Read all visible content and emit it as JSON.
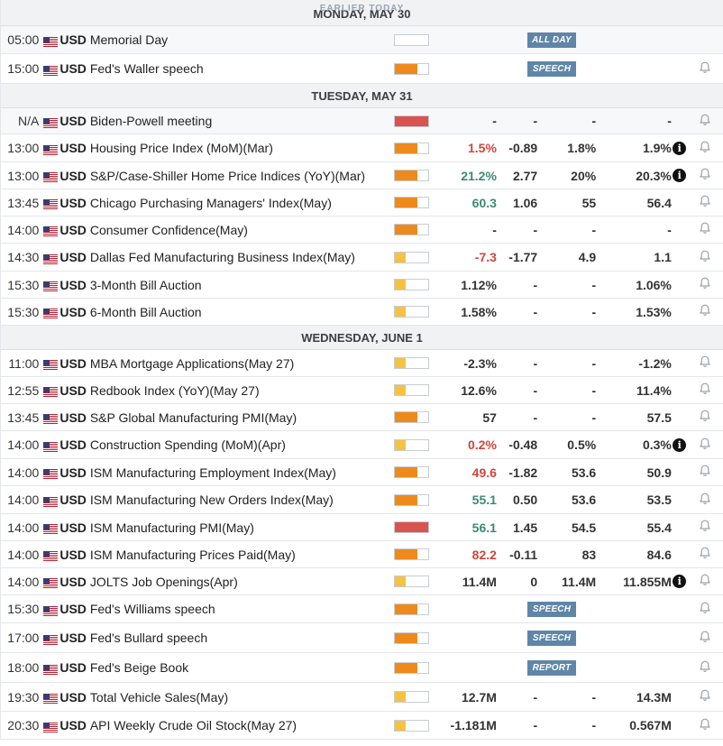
{
  "top_partial_label": "EARLIER TODAY",
  "days": [
    {
      "date": "MONDAY, MAY 30",
      "events": [
        {
          "time": "05:00",
          "currency": "USD",
          "name": "Memorial Day",
          "impact": "none",
          "actual": "",
          "actual_class": "neu",
          "deviation": "",
          "consensus": "",
          "previous": "",
          "tag": "ALL DAY",
          "info": false,
          "bell": false,
          "highlight": true
        },
        {
          "time": "15:00",
          "currency": "USD",
          "name": "Fed's Waller speech",
          "impact": "medium",
          "actual": "",
          "actual_class": "neu",
          "deviation": "",
          "consensus": "",
          "previous": "",
          "tag": "SPEECH",
          "info": false,
          "bell": true,
          "highlight": false
        }
      ]
    },
    {
      "date": "TUESDAY, MAY 31",
      "events": [
        {
          "time": "N/A",
          "currency": "USD",
          "name": "Biden-Powell meeting",
          "impact": "high",
          "actual": "-",
          "actual_class": "neu",
          "deviation": "-",
          "consensus": "-",
          "previous": "-",
          "tag": "",
          "info": false,
          "bell": true,
          "highlight": true
        },
        {
          "time": "13:00",
          "currency": "USD",
          "name": "Housing Price Index (MoM)(Mar)",
          "impact": "medium",
          "actual": "1.5%",
          "actual_class": "neg",
          "deviation": "-0.89",
          "consensus": "1.8%",
          "previous": "1.9%",
          "tag": "",
          "info": true,
          "bell": true,
          "highlight": false
        },
        {
          "time": "13:00",
          "currency": "USD",
          "name": "S&P/Case-Shiller Home Price Indices (YoY)(Mar)",
          "impact": "medium",
          "actual": "21.2%",
          "actual_class": "pos",
          "deviation": "2.77",
          "consensus": "20%",
          "previous": "20.3%",
          "tag": "",
          "info": true,
          "bell": true,
          "highlight": false
        },
        {
          "time": "13:45",
          "currency": "USD",
          "name": "Chicago Purchasing Managers' Index(May)",
          "impact": "medium",
          "actual": "60.3",
          "actual_class": "pos",
          "deviation": "1.06",
          "consensus": "55",
          "previous": "56.4",
          "tag": "",
          "info": false,
          "bell": true,
          "highlight": false
        },
        {
          "time": "14:00",
          "currency": "USD",
          "name": "Consumer Confidence(May)",
          "impact": "medium",
          "actual": "-",
          "actual_class": "neu",
          "deviation": "-",
          "consensus": "-",
          "previous": "-",
          "tag": "",
          "info": false,
          "bell": true,
          "highlight": false
        },
        {
          "time": "14:30",
          "currency": "USD",
          "name": "Dallas Fed Manufacturing Business Index(May)",
          "impact": "low",
          "actual": "-7.3",
          "actual_class": "neg",
          "deviation": "-1.77",
          "consensus": "4.9",
          "previous": "1.1",
          "tag": "",
          "info": false,
          "bell": true,
          "highlight": false
        },
        {
          "time": "15:30",
          "currency": "USD",
          "name": "3-Month Bill Auction",
          "impact": "low",
          "actual": "1.12%",
          "actual_class": "neu",
          "deviation": "-",
          "consensus": "-",
          "previous": "1.06%",
          "tag": "",
          "info": false,
          "bell": true,
          "highlight": false
        },
        {
          "time": "15:30",
          "currency": "USD",
          "name": "6-Month Bill Auction",
          "impact": "low",
          "actual": "1.58%",
          "actual_class": "neu",
          "deviation": "-",
          "consensus": "-",
          "previous": "1.53%",
          "tag": "",
          "info": false,
          "bell": true,
          "highlight": false
        }
      ]
    },
    {
      "date": "WEDNESDAY, JUNE 1",
      "events": [
        {
          "time": "11:00",
          "currency": "USD",
          "name": "MBA Mortgage Applications(May 27)",
          "impact": "low",
          "actual": "-2.3%",
          "actual_class": "neu",
          "deviation": "-",
          "consensus": "-",
          "previous": "-1.2%",
          "tag": "",
          "info": false,
          "bell": true,
          "highlight": false
        },
        {
          "time": "12:55",
          "currency": "USD",
          "name": "Redbook Index (YoY)(May 27)",
          "impact": "low",
          "actual": "12.6%",
          "actual_class": "neu",
          "deviation": "-",
          "consensus": "-",
          "previous": "11.4%",
          "tag": "",
          "info": false,
          "bell": true,
          "highlight": false
        },
        {
          "time": "13:45",
          "currency": "USD",
          "name": "S&P Global Manufacturing PMI(May)",
          "impact": "medium",
          "actual": "57",
          "actual_class": "neu",
          "deviation": "-",
          "consensus": "-",
          "previous": "57.5",
          "tag": "",
          "info": false,
          "bell": true,
          "highlight": false
        },
        {
          "time": "14:00",
          "currency": "USD",
          "name": "Construction Spending (MoM)(Apr)",
          "impact": "low",
          "actual": "0.2%",
          "actual_class": "neg",
          "deviation": "-0.48",
          "consensus": "0.5%",
          "previous": "0.3%",
          "tag": "",
          "info": true,
          "bell": true,
          "highlight": false
        },
        {
          "time": "14:00",
          "currency": "USD",
          "name": "ISM Manufacturing Employment Index(May)",
          "impact": "medium",
          "actual": "49.6",
          "actual_class": "neg",
          "deviation": "-1.82",
          "consensus": "53.6",
          "previous": "50.9",
          "tag": "",
          "info": false,
          "bell": true,
          "highlight": false
        },
        {
          "time": "14:00",
          "currency": "USD",
          "name": "ISM Manufacturing New Orders Index(May)",
          "impact": "medium",
          "actual": "55.1",
          "actual_class": "pos",
          "deviation": "0.50",
          "consensus": "53.6",
          "previous": "53.5",
          "tag": "",
          "info": false,
          "bell": true,
          "highlight": false
        },
        {
          "time": "14:00",
          "currency": "USD",
          "name": "ISM Manufacturing PMI(May)",
          "impact": "high",
          "actual": "56.1",
          "actual_class": "pos",
          "deviation": "1.45",
          "consensus": "54.5",
          "previous": "55.4",
          "tag": "",
          "info": false,
          "bell": true,
          "highlight": false
        },
        {
          "time": "14:00",
          "currency": "USD",
          "name": "ISM Manufacturing Prices Paid(May)",
          "impact": "medium",
          "actual": "82.2",
          "actual_class": "neg",
          "deviation": "-0.11",
          "consensus": "83",
          "previous": "84.6",
          "tag": "",
          "info": false,
          "bell": true,
          "highlight": false
        },
        {
          "time": "14:00",
          "currency": "USD",
          "name": "JOLTS Job Openings(Apr)",
          "impact": "low",
          "actual": "11.4M",
          "actual_class": "neu",
          "deviation": "0",
          "consensus": "11.4M",
          "previous": "11.855M",
          "tag": "",
          "info": true,
          "bell": true,
          "highlight": false
        },
        {
          "time": "15:30",
          "currency": "USD",
          "name": "Fed's Williams speech",
          "impact": "medium",
          "actual": "",
          "actual_class": "neu",
          "deviation": "",
          "consensus": "",
          "previous": "",
          "tag": "SPEECH",
          "info": false,
          "bell": true,
          "highlight": false
        },
        {
          "time": "17:00",
          "currency": "USD",
          "name": "Fed's Bullard speech",
          "impact": "medium",
          "actual": "",
          "actual_class": "neu",
          "deviation": "",
          "consensus": "",
          "previous": "",
          "tag": "SPEECH",
          "info": false,
          "bell": true,
          "highlight": false
        },
        {
          "time": "18:00",
          "currency": "USD",
          "name": "Fed's Beige Book",
          "impact": "medium",
          "actual": "",
          "actual_class": "neu",
          "deviation": "",
          "consensus": "",
          "previous": "",
          "tag": "REPORT",
          "info": false,
          "bell": true,
          "highlight": false
        },
        {
          "time": "19:30",
          "currency": "USD",
          "name": "Total Vehicle Sales(May)",
          "impact": "low",
          "actual": "12.7M",
          "actual_class": "neu",
          "deviation": "-",
          "consensus": "-",
          "previous": "14.3M",
          "tag": "",
          "info": false,
          "bell": true,
          "highlight": false
        },
        {
          "time": "20:30",
          "currency": "USD",
          "name": "API Weekly Crude Oil Stock(May 27)",
          "impact": "low",
          "actual": "-1.181M",
          "actual_class": "neu",
          "deviation": "-",
          "consensus": "-",
          "previous": "0.567M",
          "tag": "",
          "info": false,
          "bell": true,
          "highlight": false
        }
      ]
    }
  ],
  "impact_colors": {
    "none": "#ffffff",
    "low": "#f5c242",
    "medium": "#ee8a1c",
    "high": "#d9534f"
  },
  "impact_levels": {
    "none": 0,
    "low": 0.33,
    "medium": 0.67,
    "high": 1.0
  },
  "flag_icon": "us-flag-icon",
  "bell_icon": "bell-icon",
  "info_icon": "info-icon",
  "info_glyph": "i"
}
